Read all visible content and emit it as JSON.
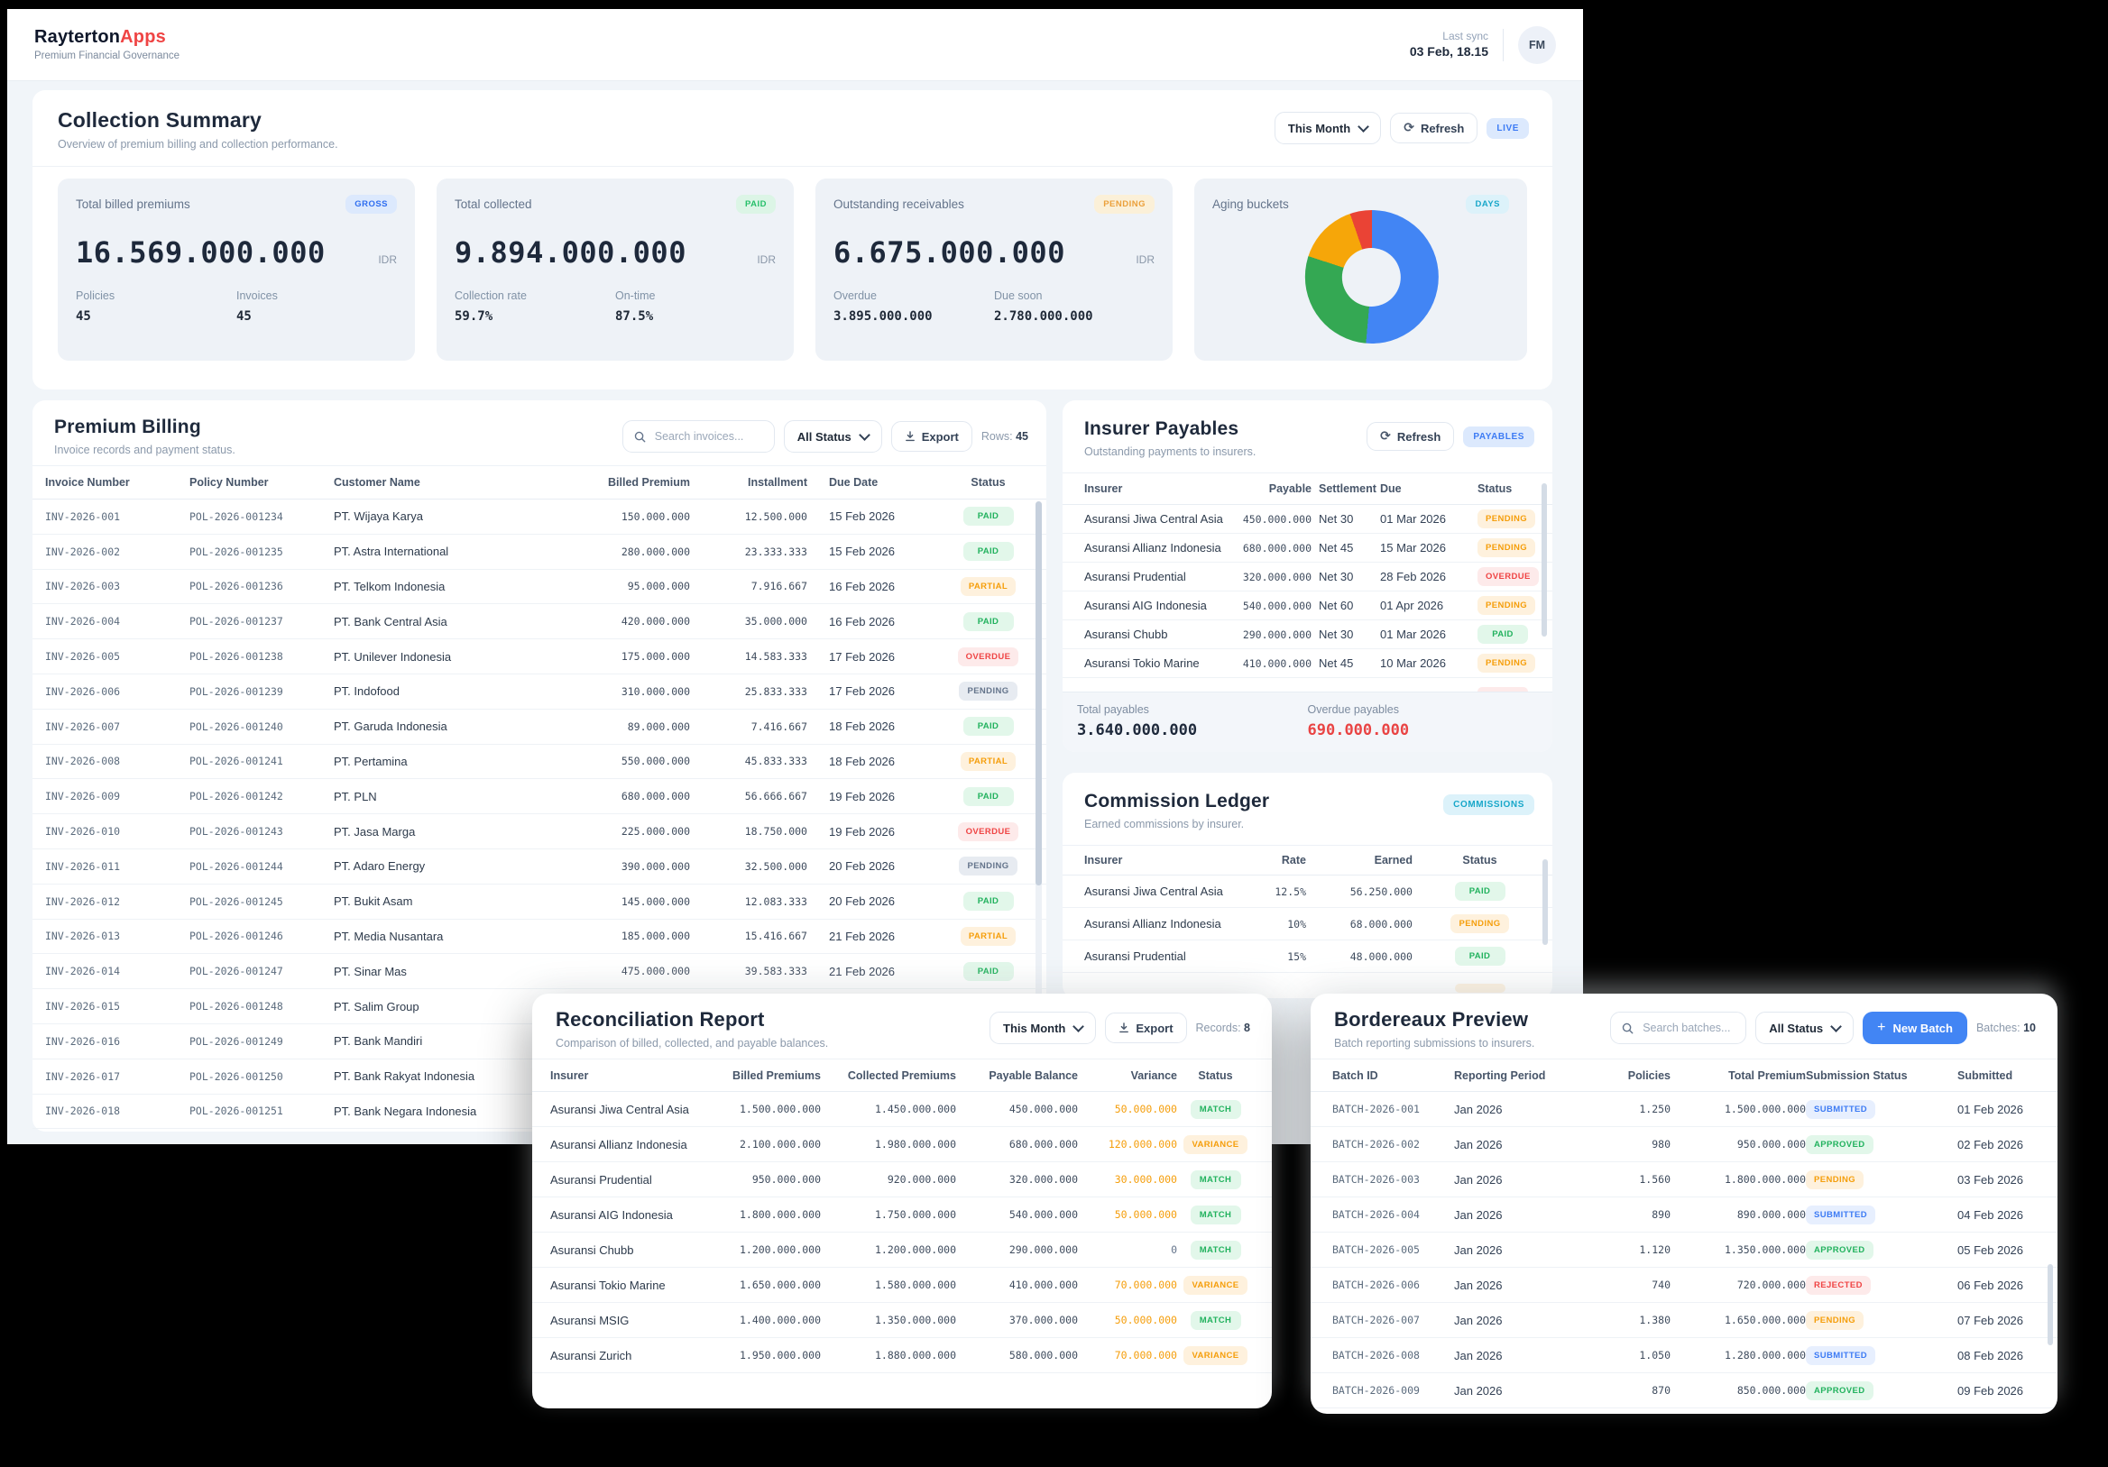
{
  "colors": {
    "accent": "#4285f4",
    "green": "#22c55e",
    "orange": "#f59e0b",
    "red": "#ef4444",
    "gray": "#64748b",
    "cyan": "#18a7c9"
  },
  "header": {
    "brand_primary": "Rayterton",
    "brand_accent": "Apps",
    "subtitle": "Premium Financial Governance",
    "last_sync_label": "Last sync",
    "last_sync_value": "03 Feb, 18.15",
    "avatar_initials": "FM"
  },
  "collection_summary": {
    "title": "Collection Summary",
    "subtitle": "Overview of premium billing and collection performance.",
    "period_select": "This Month",
    "refresh_label": "Refresh",
    "live_badge": "LIVE",
    "cards": [
      {
        "label": "Total billed premiums",
        "badge": "GROSS",
        "value": "16.569.000.000",
        "currency": "IDR",
        "stats": [
          {
            "label": "Policies",
            "value": "45"
          },
          {
            "label": "Invoices",
            "value": "45"
          }
        ]
      },
      {
        "label": "Total collected",
        "badge": "PAID",
        "value": "9.894.000.000",
        "currency": "IDR",
        "stats": [
          {
            "label": "Collection rate",
            "value": "59.7%"
          },
          {
            "label": "On-time",
            "value": "87.5%"
          }
        ]
      },
      {
        "label": "Outstanding receivables",
        "badge": "PENDING",
        "value": "6.675.000.000",
        "currency": "IDR",
        "stats": [
          {
            "label": "Overdue",
            "value": "3.895.000.000"
          },
          {
            "label": "Due soon",
            "value": "2.780.000.000"
          }
        ]
      },
      {
        "label": "Aging buckets",
        "badge": "DAYS"
      }
    ]
  },
  "chart_data": {
    "type": "pie",
    "variant": "donut",
    "title": "Aging buckets",
    "unit_badge": "DAYS",
    "labels_visible": false,
    "donut_hole_ratio": 0.44,
    "segments": [
      {
        "percent": 51.4,
        "color": "#4285F4"
      },
      {
        "percent": 28.6,
        "color": "#34A853"
      },
      {
        "percent": 14.7,
        "color": "#F6A609"
      },
      {
        "percent": 5.3,
        "color": "#EA4335"
      }
    ]
  },
  "premium_billing": {
    "title": "Premium Billing",
    "subtitle": "Invoice records and payment status.",
    "search_placeholder": "Search invoices...",
    "status_select": "All Status",
    "export_label": "Export",
    "rows_count_label": "Rows:",
    "rows_count_value": "45",
    "columns": [
      "Invoice Number",
      "Policy Number",
      "Customer Name",
      "Billed Premium",
      "Installment",
      "Due Date",
      "Status"
    ],
    "rows": [
      {
        "invoice": "INV-2026-001",
        "policy": "POL-2026-001234",
        "customer": "PT. Wijaya Karya",
        "billed": "150.000.000",
        "installment": "12.500.000",
        "due": "15 Feb 2026",
        "status": "PAID",
        "status_type": "green"
      },
      {
        "invoice": "INV-2026-002",
        "policy": "POL-2026-001235",
        "customer": "PT. Astra International",
        "billed": "280.000.000",
        "installment": "23.333.333",
        "due": "15 Feb 2026",
        "status": "PAID",
        "status_type": "green"
      },
      {
        "invoice": "INV-2026-003",
        "policy": "POL-2026-001236",
        "customer": "PT. Telkom Indonesia",
        "billed": "95.000.000",
        "installment": "7.916.667",
        "due": "16 Feb 2026",
        "status": "PARTIAL",
        "status_type": "orange"
      },
      {
        "invoice": "INV-2026-004",
        "policy": "POL-2026-001237",
        "customer": "PT. Bank Central Asia",
        "billed": "420.000.000",
        "installment": "35.000.000",
        "due": "16 Feb 2026",
        "status": "PAID",
        "status_type": "green"
      },
      {
        "invoice": "INV-2026-005",
        "policy": "POL-2026-001238",
        "customer": "PT. Unilever Indonesia",
        "billed": "175.000.000",
        "installment": "14.583.333",
        "due": "17 Feb 2026",
        "status": "OVERDUE",
        "status_type": "red"
      },
      {
        "invoice": "INV-2026-006",
        "policy": "POL-2026-001239",
        "customer": "PT. Indofood",
        "billed": "310.000.000",
        "installment": "25.833.333",
        "due": "17 Feb 2026",
        "status": "PENDING",
        "status_type": "gray"
      },
      {
        "invoice": "INV-2026-007",
        "policy": "POL-2026-001240",
        "customer": "PT. Garuda Indonesia",
        "billed": "89.000.000",
        "installment": "7.416.667",
        "due": "18 Feb 2026",
        "status": "PAID",
        "status_type": "green"
      },
      {
        "invoice": "INV-2026-008",
        "policy": "POL-2026-001241",
        "customer": "PT. Pertamina",
        "billed": "550.000.000",
        "installment": "45.833.333",
        "due": "18 Feb 2026",
        "status": "PARTIAL",
        "status_type": "orange"
      },
      {
        "invoice": "INV-2026-009",
        "policy": "POL-2026-001242",
        "customer": "PT. PLN",
        "billed": "680.000.000",
        "installment": "56.666.667",
        "due": "19 Feb 2026",
        "status": "PAID",
        "status_type": "green"
      },
      {
        "invoice": "INV-2026-010",
        "policy": "POL-2026-001243",
        "customer": "PT. Jasa Marga",
        "billed": "225.000.000",
        "installment": "18.750.000",
        "due": "19 Feb 2026",
        "status": "OVERDUE",
        "status_type": "red"
      },
      {
        "invoice": "INV-2026-011",
        "policy": "POL-2026-001244",
        "customer": "PT. Adaro Energy",
        "billed": "390.000.000",
        "installment": "32.500.000",
        "due": "20 Feb 2026",
        "status": "PENDING",
        "status_type": "gray"
      },
      {
        "invoice": "INV-2026-012",
        "policy": "POL-2026-001245",
        "customer": "PT. Bukit Asam",
        "billed": "145.000.000",
        "installment": "12.083.333",
        "due": "20 Feb 2026",
        "status": "PAID",
        "status_type": "green"
      },
      {
        "invoice": "INV-2026-013",
        "policy": "POL-2026-001246",
        "customer": "PT. Media Nusantara",
        "billed": "185.000.000",
        "installment": "15.416.667",
        "due": "21 Feb 2026",
        "status": "PARTIAL",
        "status_type": "orange"
      },
      {
        "invoice": "INV-2026-014",
        "policy": "POL-2026-001247",
        "customer": "PT. Sinar Mas",
        "billed": "475.000.000",
        "installment": "39.583.333",
        "due": "21 Feb 2026",
        "status": "PAID",
        "status_type": "green"
      },
      {
        "invoice": "INV-2026-015",
        "policy": "POL-2026-001248",
        "customer": "PT. Salim Group",
        "billed": "",
        "installment": "",
        "due": "",
        "status": ""
      },
      {
        "invoice": "INV-2026-016",
        "policy": "POL-2026-001249",
        "customer": "PT. Bank Mandiri",
        "billed": "",
        "installment": "",
        "due": "",
        "status": ""
      },
      {
        "invoice": "INV-2026-017",
        "policy": "POL-2026-001250",
        "customer": "PT. Bank Rakyat Indonesia",
        "billed": "",
        "installment": "",
        "due": "",
        "status": ""
      },
      {
        "invoice": "INV-2026-018",
        "policy": "POL-2026-001251",
        "customer": "PT. Bank Negara Indonesia",
        "billed": "",
        "installment": "",
        "due": "",
        "status": ""
      }
    ]
  },
  "insurer_payables": {
    "title": "Insurer Payables",
    "subtitle": "Outstanding payments to insurers.",
    "refresh_label": "Refresh",
    "badge": "PAYABLES",
    "columns": [
      "Insurer",
      "Payable",
      "Settlement",
      "Due",
      "Status"
    ],
    "rows": [
      {
        "insurer": "Asuransi Jiwa Central Asia",
        "payable": "450.000.000",
        "terms": "Net 30",
        "due": "01 Mar 2026",
        "status": "PENDING",
        "status_type": "orange"
      },
      {
        "insurer": "Asuransi Allianz Indonesia",
        "payable": "680.000.000",
        "terms": "Net 45",
        "due": "15 Mar 2026",
        "status": "PENDING",
        "status_type": "orange"
      },
      {
        "insurer": "Asuransi Prudential",
        "payable": "320.000.000",
        "terms": "Net 30",
        "due": "28 Feb 2026",
        "status": "OVERDUE",
        "status_type": "red"
      },
      {
        "insurer": "Asuransi AIG Indonesia",
        "payable": "540.000.000",
        "terms": "Net 60",
        "due": "01 Apr 2026",
        "status": "PENDING",
        "status_type": "orange"
      },
      {
        "insurer": "Asuransi Chubb",
        "payable": "290.000.000",
        "terms": "Net 30",
        "due": "01 Mar 2026",
        "status": "PAID",
        "status_type": "green"
      },
      {
        "insurer": "Asuransi Tokio Marine",
        "payable": "410.000.000",
        "terms": "Net 45",
        "due": "10 Mar 2026",
        "status": "PENDING",
        "status_type": "orange"
      },
      {
        "insurer": "",
        "payable": "",
        "terms": "",
        "due": "",
        "status": "",
        "status_type": "red"
      }
    ],
    "footer": {
      "total_label": "Total payables",
      "total_value": "3.640.000.000",
      "overdue_label": "Overdue payables",
      "overdue_value": "690.000.000"
    }
  },
  "commission_ledger": {
    "title": "Commission Ledger",
    "subtitle": "Earned commissions by insurer.",
    "badge": "COMMISSIONS",
    "columns": [
      "Insurer",
      "Rate",
      "Earned",
      "Status"
    ],
    "rows": [
      {
        "insurer": "Asuransi Jiwa Central Asia",
        "rate": "12.5%",
        "earned": "56.250.000",
        "status": "PAID",
        "status_type": "green"
      },
      {
        "insurer": "Asuransi Allianz Indonesia",
        "rate": "10%",
        "earned": "68.000.000",
        "status": "PENDING",
        "status_type": "orange"
      },
      {
        "insurer": "Asuransi Prudential",
        "rate": "15%",
        "earned": "48.000.000",
        "status": "PAID",
        "status_type": "green"
      },
      {
        "insurer": "",
        "rate": "",
        "earned": "",
        "status": "",
        "status_type": "orange"
      }
    ]
  },
  "reconciliation": {
    "title": "Reconciliation Report",
    "subtitle": "Comparison of billed, collected, and payable balances.",
    "period_select": "This Month",
    "export_label": "Export",
    "records_label": "Records:",
    "records_value": "8",
    "columns": [
      "Insurer",
      "Billed Premiums",
      "Collected Premiums",
      "Payable Balance",
      "Variance",
      "Status"
    ],
    "rows": [
      {
        "insurer": "Asuransi Jiwa Central Asia",
        "billed": "1.500.000.000",
        "collected": "1.450.000.000",
        "payable": "450.000.000",
        "variance": "50.000.000",
        "variance_cls": "var-orange",
        "status": "MATCH",
        "status_type": "green"
      },
      {
        "insurer": "Asuransi Allianz Indonesia",
        "billed": "2.100.000.000",
        "collected": "1.980.000.000",
        "payable": "680.000.000",
        "variance": "120.000.000",
        "variance_cls": "var-orange",
        "status": "VARIANCE",
        "status_type": "orange"
      },
      {
        "insurer": "Asuransi Prudential",
        "billed": "950.000.000",
        "collected": "920.000.000",
        "payable": "320.000.000",
        "variance": "30.000.000",
        "variance_cls": "var-orange",
        "status": "MATCH",
        "status_type": "green"
      },
      {
        "insurer": "Asuransi AIG Indonesia",
        "billed": "1.800.000.000",
        "collected": "1.750.000.000",
        "payable": "540.000.000",
        "variance": "50.000.000",
        "variance_cls": "var-orange",
        "status": "MATCH",
        "status_type": "green"
      },
      {
        "insurer": "Asuransi Chubb",
        "billed": "1.200.000.000",
        "collected": "1.200.000.000",
        "payable": "290.000.000",
        "variance": "0",
        "variance_cls": "var-muted",
        "status": "MATCH",
        "status_type": "green"
      },
      {
        "insurer": "Asuransi Tokio Marine",
        "billed": "1.650.000.000",
        "collected": "1.580.000.000",
        "payable": "410.000.000",
        "variance": "70.000.000",
        "variance_cls": "var-orange",
        "status": "VARIANCE",
        "status_type": "orange"
      },
      {
        "insurer": "Asuransi MSIG",
        "billed": "1.400.000.000",
        "collected": "1.350.000.000",
        "payable": "370.000.000",
        "variance": "50.000.000",
        "variance_cls": "var-orange",
        "status": "MATCH",
        "status_type": "green"
      },
      {
        "insurer": "Asuransi Zurich",
        "billed": "1.950.000.000",
        "collected": "1.880.000.000",
        "payable": "580.000.000",
        "variance": "70.000.000",
        "variance_cls": "var-orange",
        "status": "VARIANCE",
        "status_type": "orange"
      }
    ]
  },
  "bordereaux": {
    "title": "Bordereaux Preview",
    "subtitle": "Batch reporting submissions to insurers.",
    "search_placeholder": "Search batches...",
    "status_select": "All Status",
    "new_batch_label": "New Batch",
    "batches_label": "Batches:",
    "batches_value": "10",
    "columns": [
      "Batch ID",
      "Reporting Period",
      "Policies",
      "Total Premium",
      "Submission Status",
      "Submitted"
    ],
    "rows": [
      {
        "batch": "BATCH-2026-001",
        "period": "Jan 2026",
        "policies": "1.250",
        "premium": "1.500.000.000",
        "status": "SUBMITTED",
        "status_type": "blue",
        "submitted": "01 Feb 2026"
      },
      {
        "batch": "BATCH-2026-002",
        "period": "Jan 2026",
        "policies": "980",
        "premium": "950.000.000",
        "status": "APPROVED",
        "status_type": "green",
        "submitted": "02 Feb 2026"
      },
      {
        "batch": "BATCH-2026-003",
        "period": "Jan 2026",
        "policies": "1.560",
        "premium": "1.800.000.000",
        "status": "PENDING",
        "status_type": "orange",
        "submitted": "03 Feb 2026"
      },
      {
        "batch": "BATCH-2026-004",
        "period": "Jan 2026",
        "policies": "890",
        "premium": "890.000.000",
        "status": "SUBMITTED",
        "status_type": "blue",
        "submitted": "04 Feb 2026"
      },
      {
        "batch": "BATCH-2026-005",
        "period": "Jan 2026",
        "policies": "1.120",
        "premium": "1.350.000.000",
        "status": "APPROVED",
        "status_type": "green",
        "submitted": "05 Feb 2026"
      },
      {
        "batch": "BATCH-2026-006",
        "period": "Jan 2026",
        "policies": "740",
        "premium": "720.000.000",
        "status": "REJECTED",
        "status_type": "red",
        "submitted": "06 Feb 2026"
      },
      {
        "batch": "BATCH-2026-007",
        "period": "Jan 2026",
        "policies": "1.380",
        "premium": "1.650.000.000",
        "status": "PENDING",
        "status_type": "orange",
        "submitted": "07 Feb 2026"
      },
      {
        "batch": "BATCH-2026-008",
        "period": "Jan 2026",
        "policies": "1.050",
        "premium": "1.280.000.000",
        "status": "SUBMITTED",
        "status_type": "blue",
        "submitted": "08 Feb 2026"
      },
      {
        "batch": "BATCH-2026-009",
        "period": "Jan 2026",
        "policies": "870",
        "premium": "850.000.000",
        "status": "APPROVED",
        "status_type": "green",
        "submitted": "09 Feb 2026"
      }
    ]
  }
}
